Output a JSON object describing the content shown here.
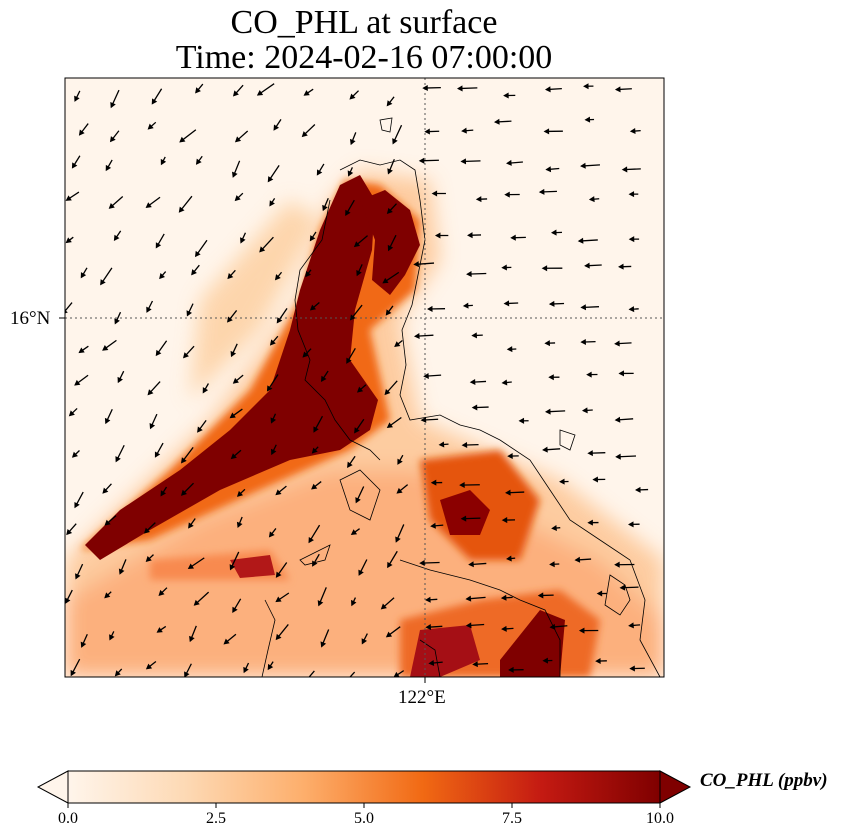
{
  "title_line1": "CO_PHL at surface",
  "title_line2": "Time: 2024-02-16 07:00:00",
  "variable": "CO_PHL",
  "units": "ppbv",
  "colorbar": {
    "label": "CO_PHL (ppbv)",
    "ticks": [
      "0.0",
      "2.5",
      "5.0",
      "7.5",
      "10.0"
    ],
    "min": 0,
    "max": 10,
    "extend": "both",
    "colormap": [
      "#fff5eb",
      "#fdd0a2",
      "#fd8d3c",
      "#d94801",
      "#a50f15",
      "#7f0000"
    ]
  },
  "gridlines": {
    "latitude_label": "16°N",
    "longitude_label": "122°E"
  },
  "plume_color": "#7f0000",
  "land_outline_color": "#000000",
  "wind_arrow_color": "#000000"
}
